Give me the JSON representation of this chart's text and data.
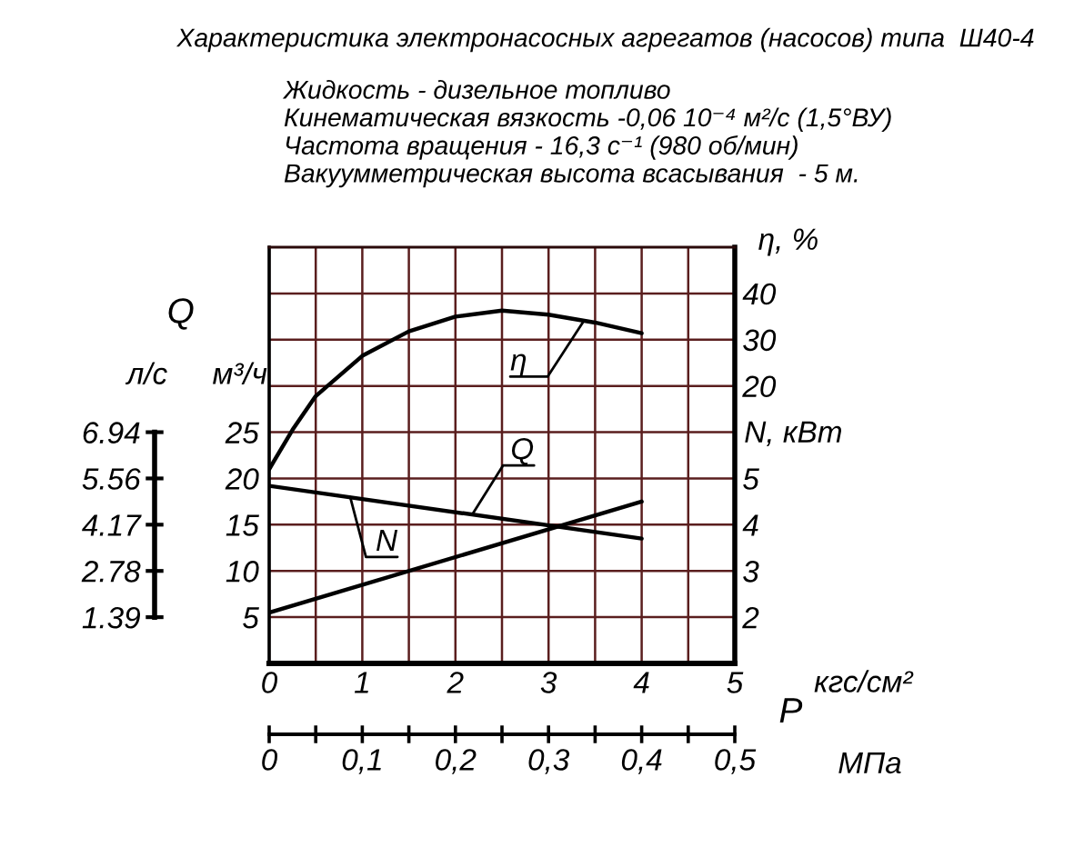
{
  "chart_data": {
    "type": "line",
    "title": "Характеристика электронасосных агрегатов (насосов) типа  Ш40-4",
    "subtitle": "Жидкость - дизельное топливо\nКинематическая вязкость -0,06 10⁻⁴ м²/с (1,5°ВУ)\nЧастота вращения - 16,3 с⁻¹ (980 об/мин)\nВакуумметрическая высота всасывания  - 5 м.",
    "xlabel": "кгс/см²",
    "x2label": "МПа",
    "ylabel": "м³/ч",
    "y2label": "η, %",
    "y3label": "N, кВт",
    "xlim": [
      0,
      5
    ],
    "xticks": [
      0,
      {
        "value": 0.5,
        "label": null
      },
      1,
      {
        "value": 1.5,
        "label": null
      },
      2,
      {
        "value": 2.5,
        "label": null
      },
      3,
      {
        "value": 3.5,
        "label": null
      },
      4,
      {
        "value": 4.5,
        "label": null
      },
      5
    ],
    "x2lim": [
      0,
      0.5
    ],
    "x2ticks": [
      0,
      {
        "value": 0.05,
        "label": null
      },
      {
        "value": 0.1,
        "label": "0,1"
      },
      {
        "value": 0.15,
        "label": null
      },
      {
        "value": 0.2,
        "label": "0,2"
      },
      {
        "value": 0.25,
        "label": null
      },
      {
        "value": 0.3,
        "label": "0,3"
      },
      {
        "value": 0.35,
        "label": null
      },
      {
        "value": 0.4,
        "label": "0,4"
      },
      {
        "value": 0.45,
        "label": null
      },
      {
        "value": 0.5,
        "label": "0,5"
      }
    ],
    "ylim": [
      0,
      45
    ],
    "yticks": [
      5,
      10,
      15,
      20,
      25,
      {
        "value": 30,
        "label": null
      },
      {
        "value": 35,
        "label": null
      },
      {
        "value": 40,
        "label": null
      }
    ],
    "y2lim": [
      -40,
      50
    ],
    "y2ticks": [
      20,
      30,
      40
    ],
    "y3lim": [
      1,
      10
    ],
    "y3ticks": [
      2,
      3,
      4,
      5
    ],
    "grid": true,
    "series": [
      {
        "axis": "y2",
        "color": "#000000",
        "x": [
          0,
          0.25,
          0.5,
          1,
          1.5,
          2,
          2.5,
          3,
          3.5,
          4
        ],
        "values": [
          2,
          10.5,
          17.8,
          26.5,
          31.8,
          35,
          36.3,
          35.4,
          33.7,
          31.4
        ]
      },
      {
        "axis": "y",
        "color": "#000000",
        "x": [
          0,
          4
        ],
        "values": [
          19.2,
          13.5
        ]
      },
      {
        "axis": "y3",
        "color": "#000000",
        "x": [
          0,
          4
        ],
        "values": [
          2.1,
          4.5
        ]
      }
    ],
    "annotations": [
      "Q",
      "P",
      "л/с",
      "6.94",
      "5.56",
      "4.17",
      "2.78",
      "1.39",
      {
        "text": "η",
        "x": 3.37,
        "y": 36.9
      },
      {
        "text": "Q",
        "x": 2.18,
        "y": 16.1
      },
      {
        "text": "N",
        "x": 0.87,
        "y": 18.0
      }
    ]
  }
}
